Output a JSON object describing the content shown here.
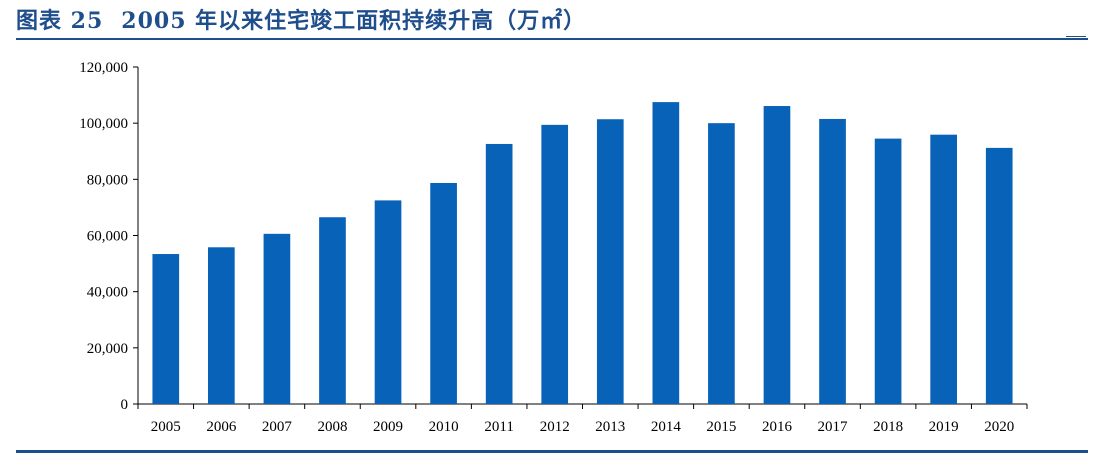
{
  "header": {
    "figure_label": "图表 25",
    "title": "2005 年以来住宅竣工面积持续升高（万㎡）"
  },
  "colors": {
    "bar": "#0862b8",
    "title": "#1f4e8c",
    "axis": "#000000"
  },
  "chart_data": {
    "type": "bar",
    "title": "2005 年以来住宅竣工面积持续升高（万㎡）",
    "categories": [
      "2005",
      "2006",
      "2007",
      "2008",
      "2009",
      "2010",
      "2011",
      "2012",
      "2013",
      "2014",
      "2015",
      "2016",
      "2017",
      "2018",
      "2019",
      "2020"
    ],
    "values": [
      53400,
      55800,
      60600,
      66500,
      72500,
      78700,
      92600,
      99400,
      101400,
      107500,
      100000,
      106100,
      101500,
      94500,
      95900,
      91200
    ],
    "ylim": [
      0,
      120000
    ],
    "yticks": [
      0,
      20000,
      40000,
      60000,
      80000,
      100000,
      120000
    ],
    "ytick_labels": [
      "0",
      "20,000",
      "40,000",
      "60,000",
      "80,000",
      "100,000",
      "120,000"
    ],
    "xlabel": "",
    "ylabel": "",
    "grid": false,
    "legend": "none"
  }
}
